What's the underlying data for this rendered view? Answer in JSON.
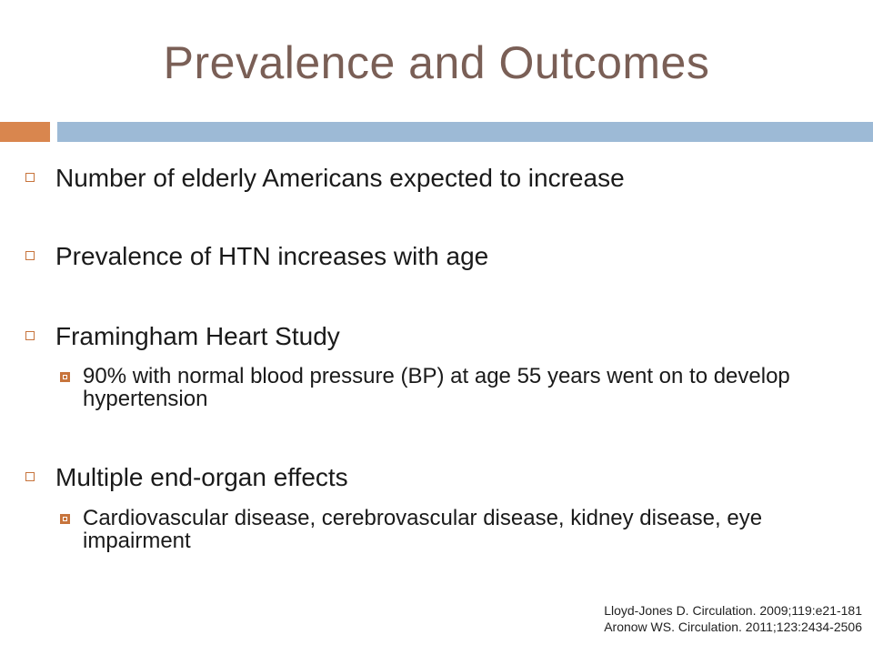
{
  "slide": {
    "title": "Prevalence and Outcomes",
    "bullets": [
      {
        "text": "Number of elderly Americans expected to increase"
      },
      {
        "text": "Prevalence of HTN increases with age"
      },
      {
        "text": "Framingham Heart Study",
        "sub": "90% with normal blood pressure (BP) at age 55 years went on to develop hypertension"
      },
      {
        "text": "Multiple end-organ effects",
        "sub": "Cardiovascular disease, cerebrovascular disease, kidney disease, eye impairment"
      }
    ],
    "references": [
      "Lloyd-Jones D. Circulation. 2009;119:e21-181",
      "Aronow WS. Circulation. 2011;123:2434-2506"
    ]
  },
  "colors": {
    "title": "#7a5f56",
    "accent_orange": "#d9864e",
    "accent_blue": "#9dbad6"
  }
}
